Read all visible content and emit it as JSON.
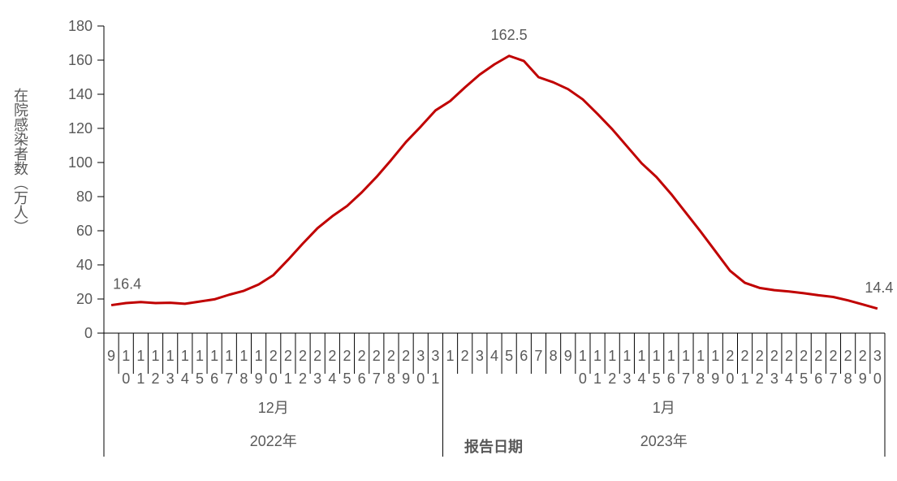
{
  "chart_data": {
    "type": "line",
    "y_axis_label": "在院感染者数（万人）",
    "x_axis_label": "报告日期",
    "ylim": [
      0,
      180
    ],
    "yticks": [
      0,
      20,
      40,
      60,
      80,
      100,
      120,
      140,
      160,
      180
    ],
    "groups": [
      {
        "year": "2022年",
        "month": "12月",
        "categories": [
          "9",
          "10",
          "11",
          "12",
          "13",
          "14",
          "15",
          "16",
          "17",
          "18",
          "19",
          "20",
          "21",
          "22",
          "23",
          "24",
          "25",
          "26",
          "27",
          "28",
          "29",
          "30",
          "31"
        ]
      },
      {
        "year": "2023年",
        "month": "1月",
        "categories": [
          "1",
          "2",
          "3",
          "4",
          "5",
          "6",
          "7",
          "8",
          "9",
          "10",
          "11",
          "12",
          "13",
          "14",
          "15",
          "16",
          "17",
          "18",
          "19",
          "20",
          "21",
          "22",
          "23",
          "24",
          "25",
          "26",
          "27",
          "28",
          "29",
          "30"
        ]
      }
    ],
    "series": [
      {
        "color": "#c00000",
        "values": [
          16.4,
          17.6,
          18.2,
          17.6,
          17.8,
          17.2,
          18.5,
          19.8,
          22.5,
          24.8,
          28.5,
          34,
          43,
          52.5,
          61.5,
          68.5,
          74.5,
          82.5,
          91.5,
          101.5,
          112,
          121,
          130.5,
          136,
          144,
          151.5,
          157.5,
          162.5,
          159.5,
          150,
          147,
          143,
          137,
          128.5,
          119.5,
          109.5,
          99.5,
          91.5,
          81.5,
          70.5,
          59.5,
          48,
          36.5,
          29.5,
          26.5,
          25.2,
          24.4,
          23.4,
          22.2,
          21.2,
          19.2,
          16.8,
          14.4
        ],
        "value_labels": [
          "16.4",
          null,
          null,
          null,
          null,
          null,
          null,
          null,
          null,
          null,
          null,
          null,
          null,
          null,
          null,
          null,
          null,
          null,
          null,
          null,
          null,
          null,
          null,
          null,
          null,
          null,
          null,
          "162.5",
          null,
          null,
          null,
          null,
          null,
          null,
          null,
          null,
          null,
          null,
          null,
          null,
          null,
          null,
          null,
          null,
          null,
          null,
          null,
          null,
          null,
          null,
          null,
          null,
          "14.4"
        ]
      }
    ]
  }
}
